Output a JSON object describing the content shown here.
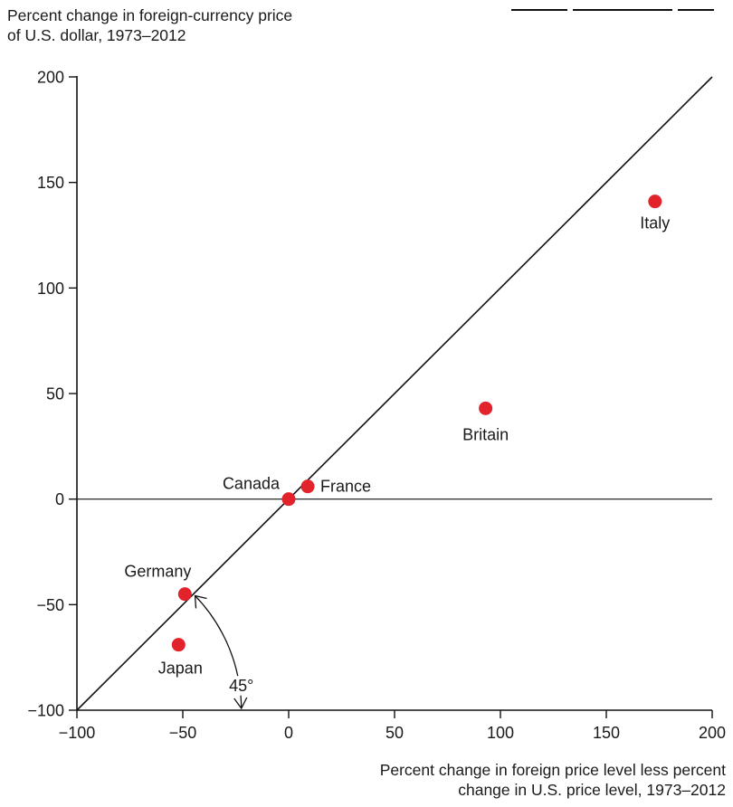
{
  "chart_data": {
    "type": "scatter",
    "ylabel": "Percent change in foreign-currency price\nof U.S. dollar, 1973–2012",
    "xlabel": "Percent change in foreign price level less percent\nchange in U.S. price level, 1973–2012",
    "xlim": [
      -100,
      200
    ],
    "ylim": [
      -100,
      200
    ],
    "xticks": [
      "−100",
      "−50",
      "0",
      "50",
      "100",
      "150",
      "200"
    ],
    "yticks": [
      "−100",
      "−50",
      "0",
      "50",
      "100",
      "150",
      "200"
    ],
    "xtick_values": [
      -100,
      -50,
      0,
      50,
      100,
      150,
      200
    ],
    "ytick_values": [
      -100,
      -50,
      0,
      50,
      100,
      150,
      200
    ],
    "grid": false,
    "reference_line": {
      "type": "45-degree line",
      "from": [
        -100,
        -100
      ],
      "to": [
        200,
        200
      ]
    },
    "angle_annotation": "45°",
    "marker_color": "#e3232c",
    "points": [
      {
        "label": "Italy",
        "x": 173,
        "y": 141
      },
      {
        "label": "Britain",
        "x": 93,
        "y": 43
      },
      {
        "label": "France",
        "x": 9,
        "y": 6
      },
      {
        "label": "Canada",
        "x": 0,
        "y": 0
      },
      {
        "label": "Germany",
        "x": -49,
        "y": -45
      },
      {
        "label": "Japan",
        "x": -52,
        "y": -69
      }
    ]
  }
}
